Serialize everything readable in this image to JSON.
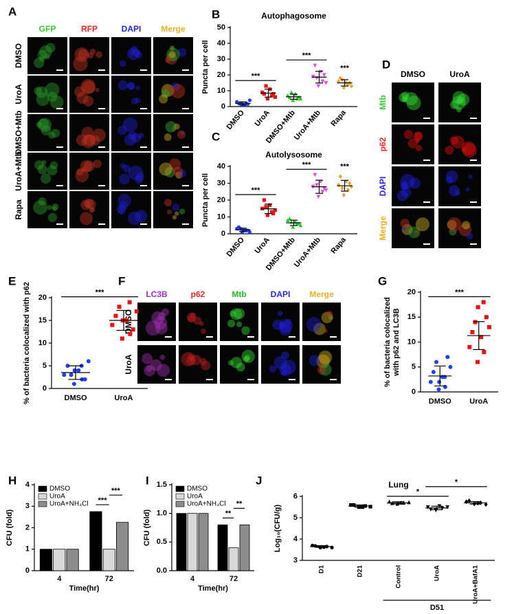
{
  "panels": [
    {
      "letter": "A",
      "columns": [
        "GFP",
        "RFP",
        "DAPI",
        "Merge"
      ],
      "rows": [
        "DMSO",
        "UroA",
        "DMSO+Mtb",
        "UroA+Mtb",
        "Rapa"
      ]
    },
    {
      "letter": "D",
      "columns": [
        "DMSO",
        "UroA"
      ],
      "rows": [
        "Mtb",
        "p62",
        "DAPI",
        "Merge"
      ]
    },
    {
      "letter": "F",
      "columns": [
        "LC3B",
        "p62",
        "Mtb",
        "DAPI",
        "Merge"
      ],
      "rows": [
        "DMSO",
        "UroA"
      ]
    }
  ],
  "chart_data": [
    {
      "type": "strip",
      "letter": "B",
      "title": "Autophagosome",
      "ylabel": [
        "Puncta per cell"
      ],
      "categories": [
        "DMSO",
        "UroA",
        "DMSO+Mtb",
        "UroA+Mtb",
        "Rapa"
      ],
      "label_rotation": 50,
      "values": [
        [
          1,
          2,
          3,
          1,
          2,
          4,
          2,
          1.5
        ],
        [
          5,
          7,
          9,
          11,
          8,
          6,
          13,
          8
        ],
        [
          4,
          5,
          7,
          8,
          6,
          5,
          9,
          6
        ],
        [
          13,
          16,
          19,
          22,
          26,
          15,
          18,
          20
        ],
        [
          12,
          14,
          16,
          15,
          18,
          13,
          17,
          15
        ]
      ],
      "means": [
        2,
        8.5,
        6.2,
        18.6,
        15
      ],
      "errors": [
        1,
        2.5,
        1.6,
        3.7,
        2
      ],
      "colors": [
        "#1f3fff",
        "#ee1111",
        "#22cc22",
        "#ee44ee",
        "#f0a030"
      ],
      "markers": [
        "circle",
        "square",
        "triangle",
        "triangle-down",
        "diamond"
      ],
      "ylim": [
        0,
        50
      ],
      "yticks": [
        0,
        10,
        20,
        30,
        40,
        50
      ],
      "annotations": [
        "***",
        "***",
        "***"
      ]
    },
    {
      "type": "strip",
      "letter": "C",
      "title": "Autolysosome",
      "ylabel": [
        "Puncta per cell"
      ],
      "categories": [
        "DMSO",
        "UroA",
        "DMSO+Mtb",
        "UroA+Mtb",
        "Rapa"
      ],
      "label_rotation": 50,
      "values": [
        [
          1,
          2,
          3,
          2,
          4,
          1,
          3,
          2
        ],
        [
          11,
          13,
          15,
          17,
          20,
          14,
          16,
          12
        ],
        [
          4,
          6,
          8,
          7,
          9,
          5,
          7,
          6
        ],
        [
          22,
          25,
          28,
          31,
          35,
          26,
          29,
          27
        ],
        [
          23,
          26,
          29,
          31,
          34,
          28,
          27,
          30
        ]
      ],
      "means": [
        2.3,
        14.8,
        6.5,
        27.9,
        28.5
      ],
      "errors": [
        1,
        2.8,
        1.6,
        3.9,
        3.2
      ],
      "colors": [
        "#1f3fff",
        "#ee1111",
        "#22cc22",
        "#ee44ee",
        "#f0a030"
      ],
      "markers": [
        "circle",
        "square",
        "triangle",
        "triangle-down",
        "diamond"
      ],
      "ylim": [
        0,
        40
      ],
      "yticks": [
        0,
        10,
        20,
        30,
        40
      ],
      "annotations": [
        "***",
        "***",
        "***"
      ]
    },
    {
      "type": "strip",
      "letter": "E",
      "ylabel": [
        "% of bacteria colocalized with p62"
      ],
      "categories": [
        "DMSO",
        "UroA"
      ],
      "values": [
        [
          1,
          2,
          3,
          4,
          5,
          6,
          3,
          2,
          4,
          5
        ],
        [
          11,
          12,
          14,
          15,
          16,
          17,
          18,
          13,
          15,
          19
        ]
      ],
      "means": [
        3.5,
        15
      ],
      "errors": [
        1.5,
        2.2
      ],
      "colors": [
        "#1f3fff",
        "#ee1111"
      ],
      "markers": [
        "circle",
        "square"
      ],
      "ylim": [
        0,
        20
      ],
      "yticks": [
        0,
        5,
        10,
        15,
        20
      ],
      "annotations": [
        "***"
      ]
    },
    {
      "type": "strip",
      "letter": "G",
      "ylabel": [
        "% of bacteria colocalized",
        "with p62 and LC3B"
      ],
      "categories": [
        "DMSO",
        "UroA"
      ],
      "values": [
        [
          0.5,
          1,
          2,
          3,
          4,
          5,
          6,
          7,
          2,
          3
        ],
        [
          6,
          8,
          9,
          11,
          12,
          13,
          14,
          15,
          17,
          18
        ]
      ],
      "means": [
        3.2,
        11.3
      ],
      "errors": [
        2,
        2.8
      ],
      "colors": [
        "#1f3fff",
        "#ee1111"
      ],
      "markers": [
        "circle",
        "square"
      ],
      "ylim": [
        0,
        20
      ],
      "yticks": [
        0,
        5,
        10,
        15,
        20
      ],
      "annotations": [
        "***"
      ]
    },
    {
      "type": "bar",
      "letter": "H",
      "ylabel": [
        "CFU (fold)"
      ],
      "xlabel": "Time(hr)",
      "categories": [
        "4",
        "72"
      ],
      "series": [
        {
          "name": "DMSO",
          "color": "#000000",
          "values": [
            1.0,
            2.75
          ]
        },
        {
          "name": "UroA",
          "color": "#d9d9d9",
          "values": [
            1.0,
            1.0
          ]
        },
        {
          "name": "UroA+NH₄Cl",
          "color": "#8c8c8c",
          "values": [
            1.0,
            2.25
          ]
        }
      ],
      "ylim": [
        0,
        4
      ],
      "yticks": [
        0,
        1,
        2,
        3,
        4
      ],
      "legend": "upper left",
      "annotations": [
        "***",
        "***"
      ]
    },
    {
      "type": "bar",
      "letter": "I",
      "ylabel": [
        "CFU (fold)"
      ],
      "xlabel": "Time(hr)",
      "categories": [
        "4",
        "72"
      ],
      "series": [
        {
          "name": "DMSO",
          "color": "#000000",
          "values": [
            1.0,
            0.8
          ]
        },
        {
          "name": "UroA",
          "color": "#d9d9d9",
          "values": [
            1.0,
            0.4
          ]
        },
        {
          "name": "UroA+NH₄Cl",
          "color": "#8c8c8c",
          "values": [
            1.0,
            0.8
          ]
        }
      ],
      "ylim": [
        0,
        1.5
      ],
      "yticks": [
        {
          "value": 0,
          "label": "0.0"
        },
        0.5,
        {
          "value": 1,
          "label": "1.0"
        },
        1.5
      ],
      "legend": "upper left",
      "annotations": [
        "**",
        "**"
      ]
    },
    {
      "type": "strip",
      "letter": "J",
      "title": "Lung",
      "ylabel": [
        "Log₁₀(CFU/g)"
      ],
      "categories": [
        "D1",
        "D21",
        "Control",
        "UroA",
        "UroA+BafA1"
      ],
      "label_rotation": 90,
      "group_label": "D51",
      "values": [
        [
          3.6,
          3.65,
          3.7,
          3.62,
          3.68,
          3.6
        ],
        [
          5.5,
          5.55,
          5.6,
          5.5,
          5.6,
          5.52
        ],
        [
          5.65,
          5.7,
          5.75,
          5.7,
          5.68,
          5.72
        ],
        [
          5.35,
          5.45,
          5.5,
          5.55,
          5.4,
          5.5
        ],
        [
          5.65,
          5.7,
          5.75,
          5.68,
          5.8,
          5.62
        ]
      ],
      "means": [
        3.65,
        5.55,
        5.7,
        5.46,
        5.7
      ],
      "errors": [
        0.04,
        0.05,
        0.05,
        0.08,
        0.06
      ],
      "colors": [
        "#000000",
        "#000000",
        "#000000",
        "#000000",
        "#000000"
      ],
      "markers": [
        "circle",
        "square",
        "triangle",
        "triangle-down",
        "diamond"
      ],
      "ylim": [
        3,
        6
      ],
      "yticks": [
        3,
        4,
        5,
        6
      ],
      "annotations": [
        "*",
        "*"
      ]
    }
  ]
}
